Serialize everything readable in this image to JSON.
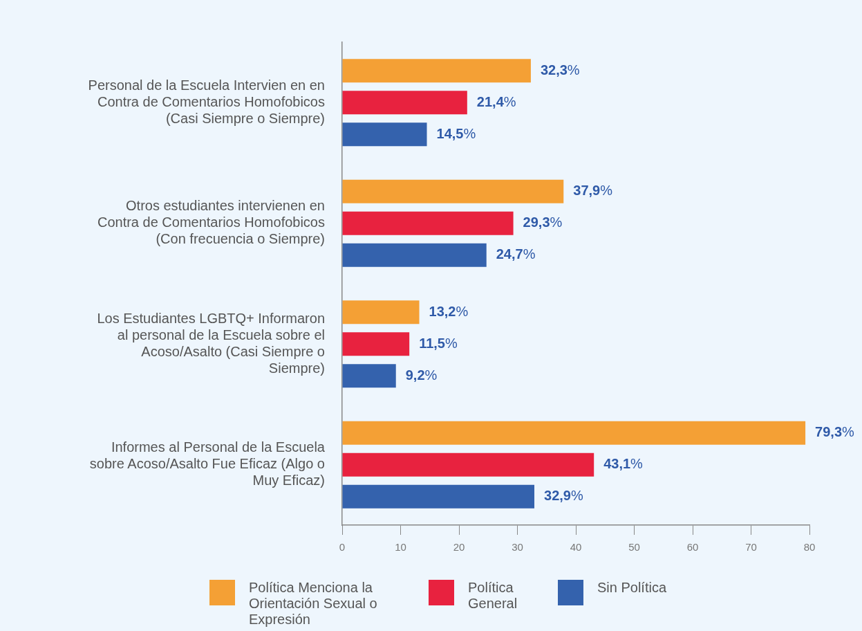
{
  "chart_data": {
    "type": "bar",
    "orientation": "horizontal",
    "categories": [
      "Personal de la Escuela Intervien en en Contra de Comentarios Homofobicos (Casi Siempre o Siempre)",
      "Otros estudiantes intervienen en Contra de Comentarios Homofobicos (Con frecuencia o Siempre)",
      "Los Estudiantes LGBTQ+ Informaron al personal de la Escuela sobre el Acoso/Asalto (Casi Siempre o Siempre)",
      "Informes al Personal de la Escuela sobre Acoso/Asalto Fue Eficaz (Algo o Muy Eficaz)"
    ],
    "series": [
      {
        "name": "Política Menciona la Orientación Sexual o Expresión",
        "color": "#f4a035",
        "values": [
          32.3,
          37.9,
          13.2,
          79.3
        ],
        "value_labels": [
          "32,3%",
          "37,9%",
          "13,2%",
          "79,3%"
        ]
      },
      {
        "name": "Política General",
        "color": "#e8223f",
        "values": [
          21.4,
          29.3,
          11.5,
          43.1
        ],
        "value_labels": [
          "21,4%",
          "29,3%",
          "11,5%",
          "43,1%"
        ]
      },
      {
        "name": "Sin Política",
        "color": "#3462ad",
        "values": [
          14.5,
          24.7,
          9.2,
          32.9
        ],
        "value_labels": [
          "14,5%",
          "24,7%",
          "9,2%",
          "32,9%"
        ]
      }
    ],
    "xlim": [
      0,
      80
    ],
    "xticks": [
      0,
      10,
      20,
      30,
      40,
      50,
      60,
      70,
      80
    ],
    "grid": false,
    "legend": "bottom"
  }
}
